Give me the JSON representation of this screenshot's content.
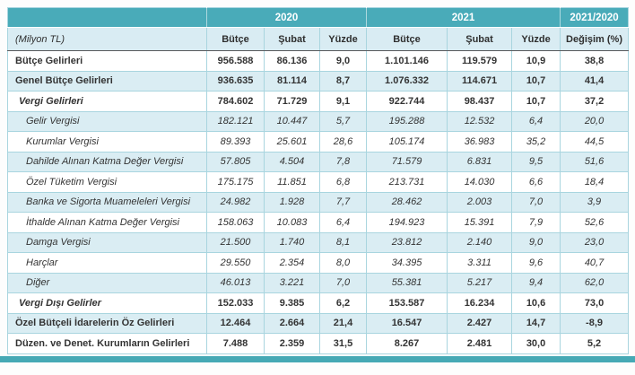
{
  "colors": {
    "teal_header": "#49abb9",
    "bottom_bar": "#46a9b5",
    "stripe_bg": "#daedf3",
    "header_row_bg": "#d9ecf3",
    "grid_line": "#a9d5df",
    "text": "#333333"
  },
  "chart_data": {
    "type": "table",
    "title": "",
    "unit_note": "(Milyon TL)",
    "header_groups": [
      {
        "label": "",
        "span": 1
      },
      {
        "label": "2020",
        "span": 3
      },
      {
        "label": "2021",
        "span": 3
      },
      {
        "label": "2021/2020",
        "span": 1
      }
    ],
    "columns": [
      "(Milyon TL)",
      "Bütçe",
      "Şubat",
      "Yüzde",
      "Bütçe",
      "Şubat",
      "Yüzde",
      "Değişim (%)"
    ],
    "rows": [
      {
        "label": "Bütçe Gelirleri",
        "values": [
          "956.588",
          "86.136",
          "9,0",
          "1.101.146",
          "119.579",
          "10,9",
          "38,8"
        ],
        "emphasis": "bold",
        "indent": 0
      },
      {
        "label": "Genel Bütçe Gelirleri",
        "values": [
          "936.635",
          "81.114",
          "8,7",
          "1.076.332",
          "114.671",
          "10,7",
          "41,4"
        ],
        "emphasis": "bold",
        "indent": 0
      },
      {
        "label": "Vergi Gelirleri",
        "values": [
          "784.602",
          "71.729",
          "9,1",
          "922.744",
          "98.437",
          "10,7",
          "37,2"
        ],
        "emphasis": "bold-italic",
        "indent": 1
      },
      {
        "label": "Gelir Vergisi",
        "values": [
          "182.121",
          "10.447",
          "5,7",
          "195.288",
          "12.532",
          "6,4",
          "20,0"
        ],
        "emphasis": "italic",
        "indent": 2
      },
      {
        "label": "Kurumlar Vergisi",
        "values": [
          "89.393",
          "25.601",
          "28,6",
          "105.174",
          "36.983",
          "35,2",
          "44,5"
        ],
        "emphasis": "italic",
        "indent": 2
      },
      {
        "label": "Dahilde Alınan Katma Değer Vergisi",
        "values": [
          "57.805",
          "4.504",
          "7,8",
          "71.579",
          "6.831",
          "9,5",
          "51,6"
        ],
        "emphasis": "italic",
        "indent": 2
      },
      {
        "label": "Özel Tüketim Vergisi",
        "values": [
          "175.175",
          "11.851",
          "6,8",
          "213.731",
          "14.030",
          "6,6",
          "18,4"
        ],
        "emphasis": "italic",
        "indent": 2
      },
      {
        "label": "Banka ve Sigorta Muameleleri Vergisi",
        "values": [
          "24.982",
          "1.928",
          "7,7",
          "28.462",
          "2.003",
          "7,0",
          "3,9"
        ],
        "emphasis": "italic",
        "indent": 2
      },
      {
        "label": "İthalde Alınan Katma Değer Vergisi",
        "values": [
          "158.063",
          "10.083",
          "6,4",
          "194.923",
          "15.391",
          "7,9",
          "52,6"
        ],
        "emphasis": "italic",
        "indent": 2
      },
      {
        "label": "Damga Vergisi",
        "values": [
          "21.500",
          "1.740",
          "8,1",
          "23.812",
          "2.140",
          "9,0",
          "23,0"
        ],
        "emphasis": "italic",
        "indent": 2
      },
      {
        "label": "Harçlar",
        "values": [
          "29.550",
          "2.354",
          "8,0",
          "34.395",
          "3.311",
          "9,6",
          "40,7"
        ],
        "emphasis": "italic",
        "indent": 2
      },
      {
        "label": "Diğer",
        "values": [
          "46.013",
          "3.221",
          "7,0",
          "55.381",
          "5.217",
          "9,4",
          "62,0"
        ],
        "emphasis": "italic",
        "indent": 2
      },
      {
        "label": "Vergi Dışı Gelirler",
        "values": [
          "152.033",
          "9.385",
          "6,2",
          "153.587",
          "16.234",
          "10,6",
          "73,0"
        ],
        "emphasis": "bold-italic",
        "indent": 1
      },
      {
        "label": "Özel Bütçeli İdarelerin Öz Gelirleri",
        "values": [
          "12.464",
          "2.664",
          "21,4",
          "16.547",
          "2.427",
          "14,7",
          "-8,9"
        ],
        "emphasis": "bold",
        "indent": 0
      },
      {
        "label": "Düzen. ve Denet. Kurumların Gelirleri",
        "values": [
          "7.488",
          "2.359",
          "31,5",
          "8.267",
          "2.481",
          "30,0",
          "5,2"
        ],
        "emphasis": "bold",
        "indent": 0
      }
    ]
  }
}
